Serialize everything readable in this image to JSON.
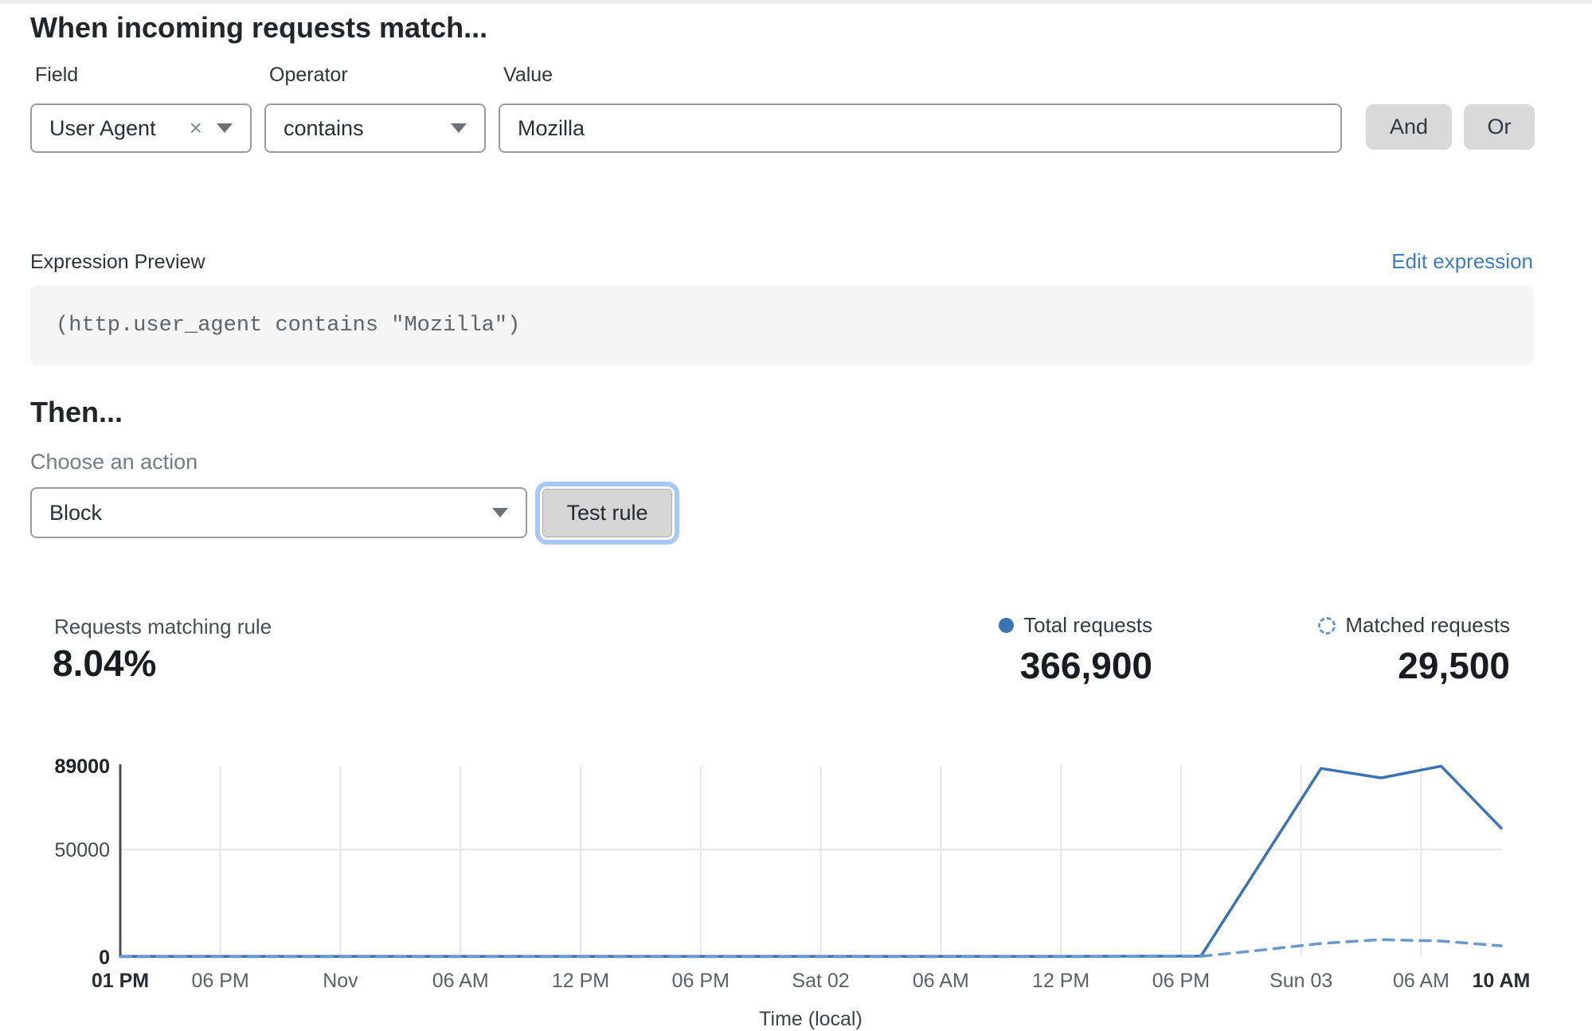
{
  "rule_builder": {
    "title": "When incoming requests match...",
    "field": {
      "label": "Field",
      "value": "User Agent"
    },
    "operator": {
      "label": "Operator",
      "value": "contains"
    },
    "value_field": {
      "label": "Value",
      "value": "Mozilla"
    },
    "and_label": "And",
    "or_label": "Or"
  },
  "icons": {
    "clear_icon": "×"
  },
  "expression": {
    "label": "Expression Preview",
    "edit_link": "Edit expression",
    "code": "(http.user_agent contains \"Mozilla\")"
  },
  "action": {
    "title": "Then...",
    "choose_label": "Choose an action",
    "selected": "Block",
    "test_button": "Test rule"
  },
  "stats": {
    "matching": {
      "label": "Requests matching rule",
      "value": "8.04%"
    },
    "total": {
      "label": "Total requests",
      "value": "366,900"
    },
    "matched": {
      "label": "Matched requests",
      "value": "29,500"
    }
  },
  "colors": {
    "total_line": "#3c73b2",
    "matched_line": "#6699ce",
    "link_blue": "#3f7cbc",
    "gridline": "#e7e7e7",
    "axis": "#4a4d50"
  },
  "chart_data": {
    "type": "line",
    "title": "",
    "xlabel": "Time (local)",
    "ylabel": "",
    "ylim": [
      0,
      89000
    ],
    "x_hours_total": 69,
    "grid": true,
    "legend_position": "top-right",
    "y_ticks": [
      {
        "value": 0,
        "label": "0",
        "bold": true
      },
      {
        "value": 50000,
        "label": "50000",
        "bold": false
      },
      {
        "value": 89000,
        "label": "89000",
        "bold": true
      }
    ],
    "x_ticks": [
      {
        "t": 0,
        "label": "01 PM",
        "bold": true
      },
      {
        "t": 5,
        "label": "06 PM",
        "bold": false
      },
      {
        "t": 11,
        "label": "Nov",
        "bold": false
      },
      {
        "t": 17,
        "label": "06 AM",
        "bold": false
      },
      {
        "t": 23,
        "label": "12 PM",
        "bold": false
      },
      {
        "t": 29,
        "label": "06 PM",
        "bold": false
      },
      {
        "t": 35,
        "label": "Sat 02",
        "bold": false
      },
      {
        "t": 41,
        "label": "06 AM",
        "bold": false
      },
      {
        "t": 47,
        "label": "12 PM",
        "bold": false
      },
      {
        "t": 53,
        "label": "06 PM",
        "bold": false
      },
      {
        "t": 59,
        "label": "Sun 03",
        "bold": false
      },
      {
        "t": 65,
        "label": "06 AM",
        "bold": false
      },
      {
        "t": 69,
        "label": "10 AM",
        "bold": true
      }
    ],
    "series": [
      {
        "name": "Total requests",
        "style": "solid",
        "color": "#3c73b2",
        "points": [
          [
            0,
            300
          ],
          [
            5,
            300
          ],
          [
            11,
            300
          ],
          [
            17,
            300
          ],
          [
            23,
            300
          ],
          [
            29,
            300
          ],
          [
            35,
            300
          ],
          [
            41,
            300
          ],
          [
            47,
            300
          ],
          [
            54,
            400
          ],
          [
            60,
            87800
          ],
          [
            63,
            83400
          ],
          [
            66,
            88900
          ],
          [
            69,
            60000
          ]
        ]
      },
      {
        "name": "Matched requests",
        "style": "dashed",
        "color": "#6699ce",
        "points": [
          [
            0,
            150
          ],
          [
            5,
            150
          ],
          [
            11,
            150
          ],
          [
            17,
            150
          ],
          [
            23,
            150
          ],
          [
            29,
            150
          ],
          [
            35,
            150
          ],
          [
            41,
            150
          ],
          [
            47,
            150
          ],
          [
            54,
            300
          ],
          [
            57,
            3200
          ],
          [
            60,
            6300
          ],
          [
            63,
            8100
          ],
          [
            66,
            7400
          ],
          [
            69,
            5200
          ]
        ]
      }
    ]
  }
}
